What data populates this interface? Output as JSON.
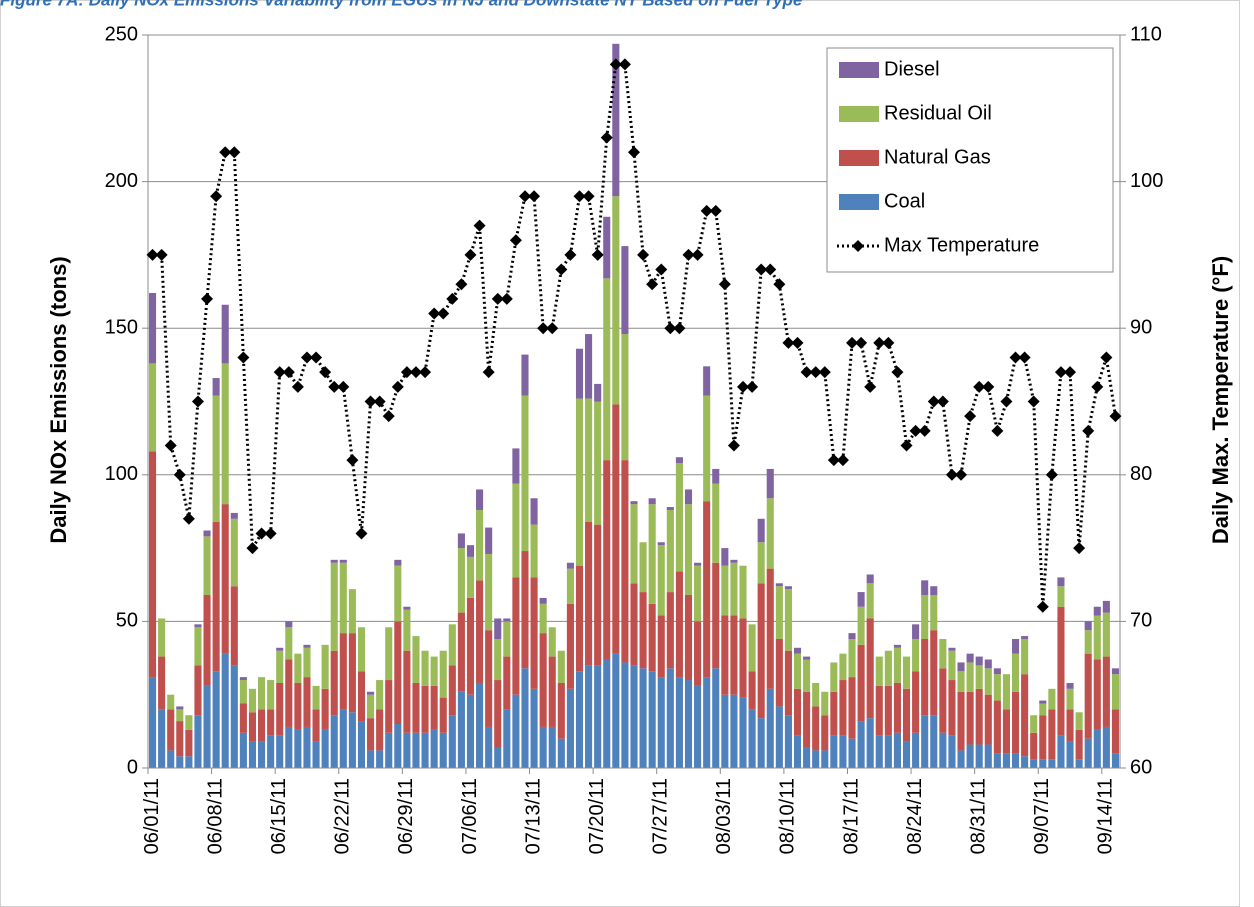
{
  "chart_data": {
    "type": "bar",
    "stacked": true,
    "title": "Figure 7A: Daily NOx Emissions Variability from EGUs in NJ and Downstate NY Based on Fuel Type",
    "y_label": "Daily NOx Emissions (tons)",
    "y2_label": "Daily Max. Temperature (°F)",
    "categories": [
      "06/01/11",
      null,
      null,
      null,
      null,
      null,
      null,
      "06/08/11",
      null,
      null,
      null,
      null,
      null,
      null,
      "06/15/11",
      null,
      null,
      null,
      null,
      null,
      null,
      "06/22/11",
      null,
      null,
      null,
      null,
      null,
      null,
      "06/29/11",
      null,
      null,
      null,
      null,
      null,
      null,
      "07/06/11",
      null,
      null,
      null,
      null,
      null,
      null,
      "07/13/11",
      null,
      null,
      null,
      null,
      null,
      null,
      "07/20/11",
      null,
      null,
      null,
      null,
      null,
      null,
      "07/27/11",
      null,
      null,
      null,
      null,
      null,
      null,
      "08/03/11",
      null,
      null,
      null,
      null,
      null,
      null,
      "08/10/11",
      null,
      null,
      null,
      null,
      null,
      null,
      "08/17/11",
      null,
      null,
      null,
      null,
      null,
      null,
      "08/24/11",
      null,
      null,
      null,
      null,
      null,
      null,
      "08/31/11",
      null,
      null,
      null,
      null,
      null,
      null,
      "09/07/11",
      null,
      null,
      null,
      null,
      null,
      null,
      "09/14/11",
      null
    ],
    "series": [
      {
        "name": "Coal",
        "color": "#4f81bd",
        "values": [
          31,
          20,
          6,
          4,
          4,
          18,
          28,
          33,
          39,
          35,
          12,
          9,
          9,
          11,
          11,
          14,
          13,
          14,
          9,
          13,
          18,
          20,
          19,
          16,
          6,
          6,
          12,
          15,
          12,
          12,
          12,
          13,
          12,
          18,
          26,
          25,
          29,
          14,
          7,
          20,
          25,
          34,
          27,
          14,
          14,
          10,
          27,
          33,
          35,
          35,
          37,
          39,
          36,
          35,
          34,
          33,
          31,
          34,
          31,
          30,
          28,
          31,
          34,
          25,
          25,
          24,
          20,
          17,
          27,
          21,
          18,
          11,
          7,
          6,
          6,
          11,
          11,
          10,
          16,
          17,
          11,
          11,
          12,
          9,
          12,
          18,
          18,
          12,
          11,
          6,
          8,
          8,
          8,
          5,
          5,
          5,
          4,
          3,
          3,
          3,
          11,
          9,
          3,
          10,
          13,
          14,
          5
        ]
      },
      {
        "name": "Natural Gas",
        "color": "#c0504d",
        "values": [
          77,
          18,
          14,
          12,
          9,
          17,
          31,
          51,
          51,
          27,
          10,
          10,
          11,
          9,
          18,
          23,
          16,
          17,
          11,
          14,
          22,
          26,
          27,
          17,
          11,
          14,
          18,
          35,
          28,
          17,
          16,
          15,
          12,
          17,
          27,
          33,
          35,
          33,
          23,
          18,
          40,
          40,
          38,
          32,
          24,
          19,
          29,
          36,
          49,
          48,
          68,
          85,
          69,
          28,
          26,
          23,
          21,
          26,
          36,
          29,
          22,
          60,
          36,
          27,
          27,
          27,
          13,
          46,
          41,
          23,
          22,
          16,
          19,
          15,
          12,
          15,
          19,
          21,
          26,
          34,
          17,
          17,
          17,
          18,
          21,
          26,
          29,
          22,
          19,
          20,
          18,
          19,
          17,
          18,
          15,
          21,
          28,
          9,
          15,
          17,
          44,
          11,
          10,
          29,
          24,
          24,
          15
        ]
      },
      {
        "name": "Residual Oil",
        "color": "#9bbb59",
        "values": [
          30,
          13,
          5,
          4,
          5,
          13,
          20,
          43,
          48,
          23,
          8,
          8,
          11,
          10,
          11,
          11,
          10,
          10,
          8,
          15,
          30,
          24,
          15,
          15,
          8,
          10,
          18,
          19,
          14,
          16,
          12,
          10,
          16,
          14,
          22,
          14,
          24,
          26,
          14,
          12,
          32,
          53,
          18,
          10,
          10,
          11,
          12,
          57,
          42,
          42,
          62,
          71,
          43,
          27,
          17,
          34,
          24,
          28,
          37,
          31,
          19,
          36,
          27,
          17,
          18,
          18,
          16,
          14,
          24,
          18,
          21,
          12,
          11,
          8,
          8,
          10,
          9,
          13,
          13,
          12,
          10,
          12,
          12,
          11,
          11,
          15,
          12,
          10,
          10,
          7,
          10,
          8,
          9,
          9,
          12,
          13,
          12,
          6,
          4,
          7,
          7,
          7,
          6,
          8,
          15,
          15,
          12
        ]
      },
      {
        "name": "Diesel",
        "color": "#8064a2",
        "values": [
          24,
          0,
          0,
          1,
          0,
          1,
          2,
          6,
          20,
          2,
          1,
          0,
          0,
          0,
          1,
          2,
          0,
          1,
          0,
          0,
          1,
          1,
          0,
          0,
          1,
          0,
          0,
          2,
          1,
          0,
          0,
          0,
          0,
          0,
          5,
          4,
          7,
          9,
          7,
          1,
          12,
          14,
          9,
          2,
          0,
          0,
          2,
          17,
          22,
          6,
          21,
          52,
          30,
          1,
          0,
          2,
          1,
          1,
          2,
          5,
          1,
          10,
          5,
          6,
          1,
          0,
          0,
          8,
          10,
          1,
          1,
          2,
          1,
          0,
          0,
          0,
          0,
          2,
          5,
          3,
          0,
          0,
          1,
          0,
          5,
          5,
          3,
          0,
          1,
          3,
          3,
          3,
          3,
          2,
          0,
          5,
          1,
          0,
          1,
          0,
          3,
          2,
          0,
          3,
          3,
          4,
          2
        ]
      },
      {
        "name": "Max Temperature",
        "type": "line",
        "axis": "y2",
        "color": "#000000",
        "values": [
          95,
          95,
          82,
          80,
          77,
          85,
          92,
          99,
          102,
          102,
          88,
          75,
          76,
          76,
          87,
          87,
          86,
          88,
          88,
          87,
          86,
          86,
          81,
          76,
          85,
          85,
          84,
          86,
          87,
          87,
          87,
          91,
          91,
          92,
          93,
          95,
          97,
          87,
          92,
          92,
          96,
          99,
          99,
          90,
          90,
          94,
          95,
          99,
          99,
          95,
          103,
          108,
          108,
          102,
          95,
          93,
          94,
          90,
          90,
          95,
          95,
          98,
          98,
          93,
          82,
          86,
          86,
          94,
          94,
          93,
          89,
          89,
          87,
          87,
          87,
          81,
          81,
          89,
          89,
          86,
          89,
          89,
          87,
          82,
          83,
          83,
          85,
          85,
          80,
          80,
          84,
          86,
          86,
          83,
          85,
          88,
          88,
          85,
          71,
          80,
          87,
          87,
          75,
          83,
          86,
          88,
          84
        ]
      }
    ],
    "ylim": [
      0,
      250
    ],
    "yticks": [
      0,
      50,
      100,
      150,
      200,
      250
    ],
    "y2lim": [
      60,
      110
    ],
    "y2ticks": [
      60,
      70,
      80,
      90,
      100,
      110
    ],
    "grid": true,
    "legend": "upper right"
  }
}
